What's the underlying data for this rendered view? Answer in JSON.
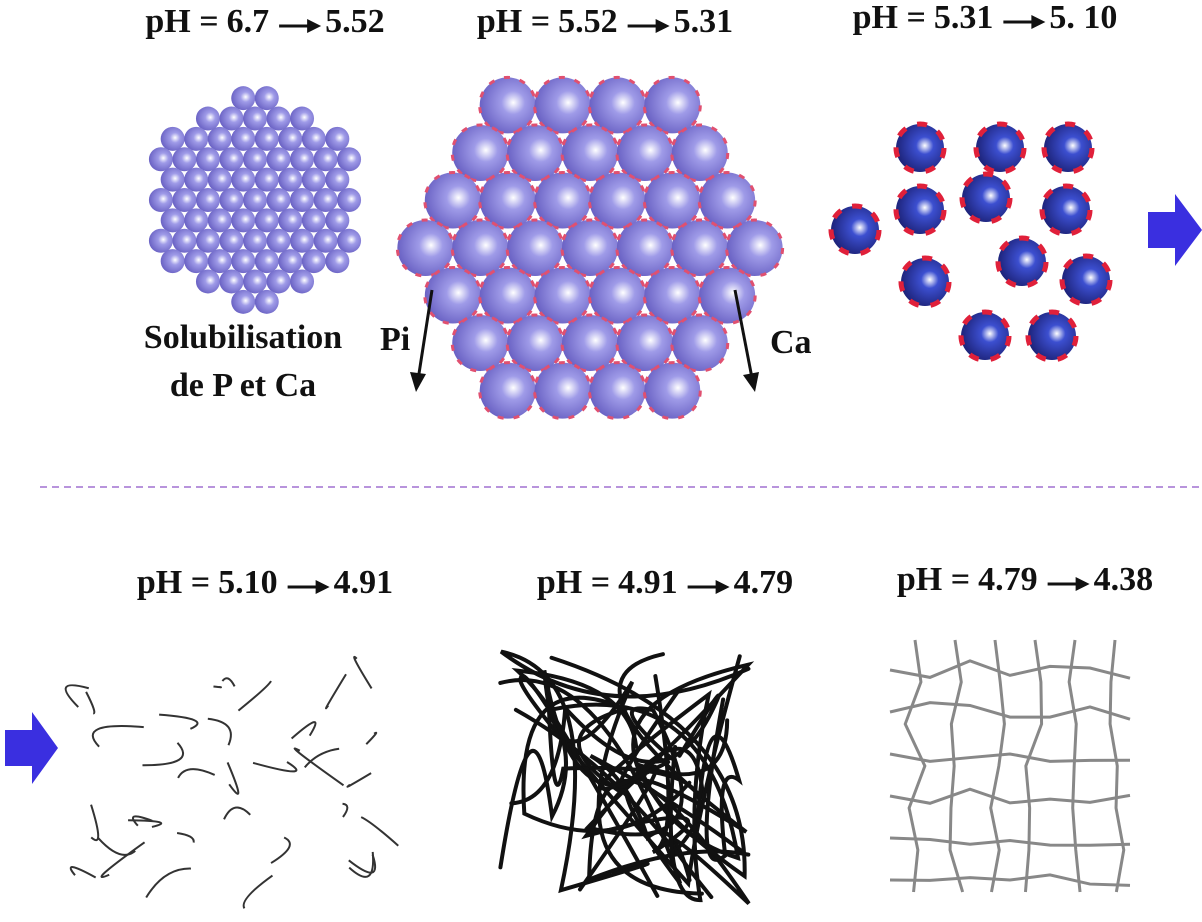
{
  "top": {
    "panels": [
      {
        "ph": {
          "prefix": "pH =",
          "from": "6.7",
          "to": "5.52"
        },
        "caption": [
          "Solubilisation",
          "de P et Ca"
        ]
      },
      {
        "ph": {
          "prefix": "pH =",
          "from": "5.52",
          "to": "5.31"
        },
        "arrows": [
          "Pi",
          "Ca"
        ]
      },
      {
        "ph": {
          "prefix": "pH =",
          "from": "5.31",
          "to": "5. 10"
        }
      }
    ]
  },
  "bottom": {
    "panels": [
      {
        "ph": {
          "prefix": "pH =",
          "from": "5.10",
          "to": "4.91"
        }
      },
      {
        "ph": {
          "prefix": "pH =",
          "from": "4.91",
          "to": "4.79"
        }
      },
      {
        "ph": {
          "prefix": "pH =",
          "from": "4.79",
          "to": "4.38"
        }
      }
    ]
  }
}
